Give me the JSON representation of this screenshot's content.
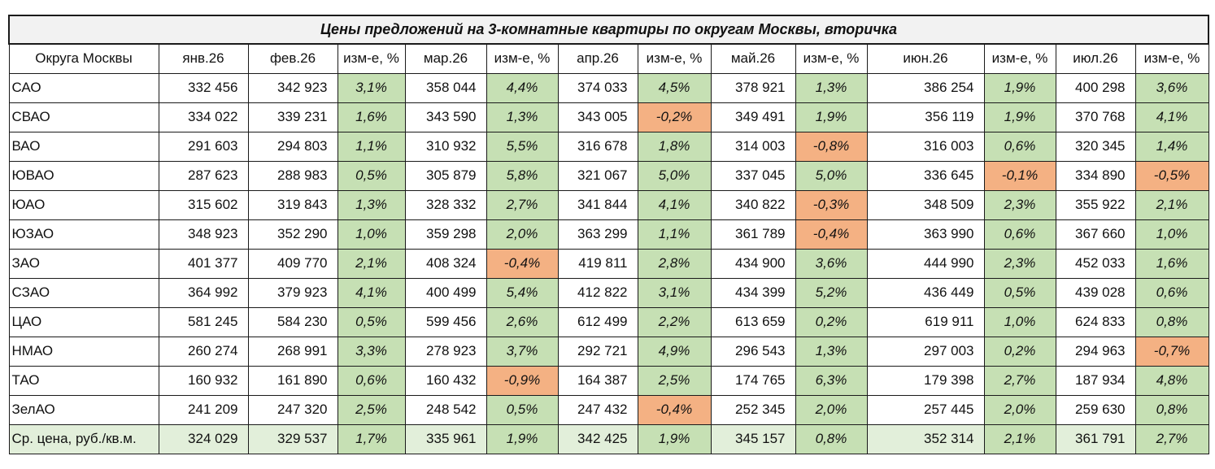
{
  "title": "Цены предложений на 3-комнатные квартиры по округам Москвы, вторичка",
  "colors": {
    "positive": "#c6e0b4",
    "negative": "#f4b183",
    "title_bg": "#f2f2f2",
    "avg_bg": "#e2efda"
  },
  "headers": [
    "Округа Москвы",
    "янв.26",
    "фев.26",
    "изм-е, %",
    "мар.26",
    "изм-е, %",
    "апр.26",
    "изм-е, %",
    "май.26",
    "изм-е, %",
    "июн.26",
    "изм-е, %",
    "июл.26",
    "изм-е, %"
  ],
  "rows": [
    {
      "district": "САО",
      "cells": [
        "332 456",
        "342 923",
        "3,1%",
        "358 044",
        "4,4%",
        "374 033",
        "4,5%",
        "378 921",
        "1,3%",
        "386 254",
        "1,9%",
        "400 298",
        "3,6%"
      ]
    },
    {
      "district": "СВАО",
      "cells": [
        "334 022",
        "339 231",
        "1,6%",
        "343 590",
        "1,3%",
        "343 005",
        "-0,2%",
        "349 491",
        "1,9%",
        "356 119",
        "1,9%",
        "370 768",
        "4,1%"
      ]
    },
    {
      "district": "ВАО",
      "cells": [
        "291 603",
        "294 803",
        "1,1%",
        "310 932",
        "5,5%",
        "316 678",
        "1,8%",
        "314 003",
        "-0,8%",
        "316 003",
        "0,6%",
        "320 345",
        "1,4%"
      ]
    },
    {
      "district": "ЮВАО",
      "cells": [
        "287 623",
        "288 983",
        "0,5%",
        "305 879",
        "5,8%",
        "321 067",
        "5,0%",
        "337 045",
        "5,0%",
        "336 645",
        "-0,1%",
        "334 890",
        "-0,5%"
      ]
    },
    {
      "district": "ЮАО",
      "cells": [
        "315 602",
        "319 843",
        "1,3%",
        "328 332",
        "2,7%",
        "341 844",
        "4,1%",
        "340 822",
        "-0,3%",
        "348 509",
        "2,3%",
        "355 922",
        "2,1%"
      ]
    },
    {
      "district": "ЮЗАО",
      "cells": [
        "348 923",
        "352 290",
        "1,0%",
        "359 298",
        "2,0%",
        "363 299",
        "1,1%",
        "361 789",
        "-0,4%",
        "363 990",
        "0,6%",
        "367 660",
        "1,0%"
      ]
    },
    {
      "district": "ЗАО",
      "cells": [
        "401 377",
        "409 770",
        "2,1%",
        "408 324",
        "-0,4%",
        "419 811",
        "2,8%",
        "434 900",
        "3,6%",
        "444 990",
        "2,3%",
        "452 033",
        "1,6%"
      ]
    },
    {
      "district": "СЗАО",
      "cells": [
        "364 992",
        "379 923",
        "4,1%",
        "400 499",
        "5,4%",
        "412 822",
        "3,1%",
        "434 399",
        "5,2%",
        "436 449",
        "0,5%",
        "439 028",
        "0,6%"
      ]
    },
    {
      "district": "ЦАО",
      "cells": [
        "581 245",
        "584 230",
        "0,5%",
        "599 456",
        "2,6%",
        "612 499",
        "2,2%",
        "613 659",
        "0,2%",
        "619 911",
        "1,0%",
        "624 833",
        "0,8%"
      ]
    },
    {
      "district": "НМАО",
      "cells": [
        "260 274",
        "268 991",
        "3,3%",
        "278 923",
        "3,7%",
        "292 721",
        "4,9%",
        "296 543",
        "1,3%",
        "297 003",
        "0,2%",
        "294 963",
        "-0,7%"
      ]
    },
    {
      "district": "ТАО",
      "cells": [
        "160 932",
        "161 890",
        "0,6%",
        "160 432",
        "-0,9%",
        "164 387",
        "2,5%",
        "174 765",
        "6,3%",
        "179 398",
        "2,7%",
        "187 934",
        "4,8%"
      ]
    },
    {
      "district": "ЗелАО",
      "cells": [
        "241 209",
        "247 320",
        "2,5%",
        "248 542",
        "0,5%",
        "247 432",
        "-0,4%",
        "252 345",
        "2,0%",
        "257 445",
        "2,0%",
        "259 630",
        "0,8%"
      ]
    }
  ],
  "average": {
    "district": "Ср. цена, руб./кв.м.",
    "cells": [
      "324 029",
      "329 537",
      "1,7%",
      "335 961",
      "1,9%",
      "342 425",
      "1,9%",
      "345 157",
      "0,8%",
      "352 314",
      "2,1%",
      "361 791",
      "2,7%"
    ]
  }
}
